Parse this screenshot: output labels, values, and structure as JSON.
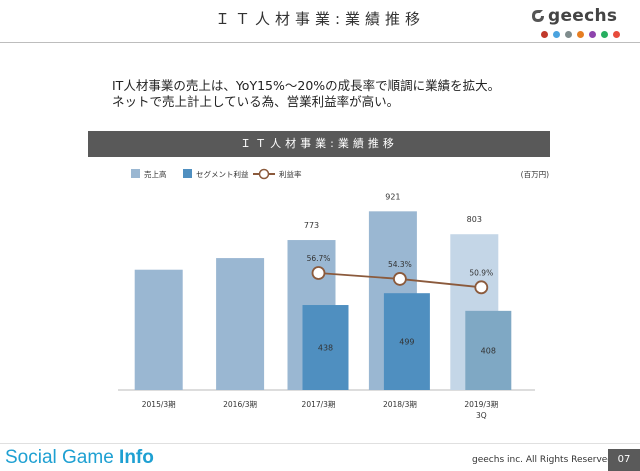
{
  "slide": {
    "title": "ＩＴ人材事業:業績推移",
    "summary_line1": "IT人材事業の売上は、YoY15%〜20%の成長率で順調に業績を拡大。",
    "summary_line2": "ネットで売上計上している為、営業利益率が高い。",
    "chart_header": "ＩＴ人材事業:業績推移",
    "unit_label": "(百万円)"
  },
  "logo": {
    "text": "geechs",
    "dot_colors": [
      "#c0392b",
      "#4aa3df",
      "#7f8c8d",
      "#e67e22",
      "#8e44ad",
      "#27ae60",
      "#e74c3c"
    ]
  },
  "footer": {
    "brand_regular": "Social Game ",
    "brand_bold": "Info",
    "copyright": "geechs inc. All Rights Reserved.",
    "page": "07"
  },
  "chart_data": {
    "type": "bar",
    "categories": [
      "2015/3期",
      "2016/3期",
      "2017/3期",
      "2018/3期",
      "2019/3期\n3Q"
    ],
    "ylim": [
      0,
      1000
    ],
    "series": [
      {
        "name": "売上高",
        "values": [
          null,
          null,
          773,
          921,
          803
        ],
        "color": "#9ab7d2",
        "value_labels": [
          "",
          "",
          "773",
          "921",
          "803"
        ]
      },
      {
        "name": "セグメント利益",
        "values": [
          null,
          null,
          438,
          499,
          408
        ],
        "color": "#4f8fc0",
        "value_labels": [
          "",
          "",
          "438",
          "499",
          "408"
        ]
      },
      {
        "name": "利益率",
        "type": "line",
        "values": [
          null,
          null,
          56.7,
          54.3,
          50.9
        ],
        "color": "#8b5a3c",
        "value_labels": [
          "",
          "",
          "56.7%",
          "54.3%",
          "50.9%"
        ]
      }
    ],
    "estimated_revenue": [
      620,
      680,
      null,
      null,
      null
    ],
    "legend_position": "top-left"
  }
}
